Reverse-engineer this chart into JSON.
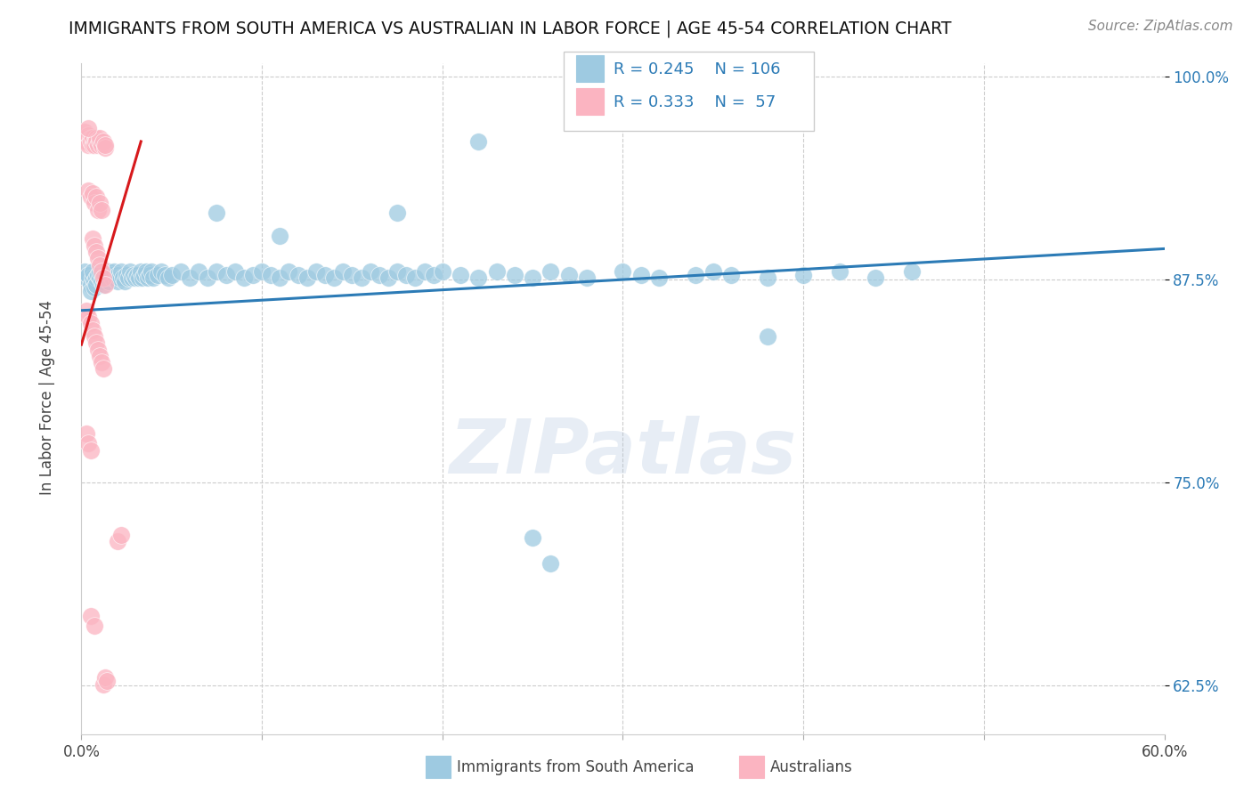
{
  "title": "IMMIGRANTS FROM SOUTH AMERICA VS AUSTRALIAN IN LABOR FORCE | AGE 45-54 CORRELATION CHART",
  "source": "Source: ZipAtlas.com",
  "ylabel": "In Labor Force | Age 45-54",
  "legend_label1": "Immigrants from South America",
  "legend_label2": "Australians",
  "R1": 0.245,
  "N1": 106,
  "R2": 0.333,
  "N2": 57,
  "xlim": [
    0.0,
    0.6
  ],
  "ylim": [
    0.595,
    1.008
  ],
  "blue_color": "#9ecae1",
  "pink_color": "#fbb4c1",
  "blue_line_color": "#2c7bb6",
  "pink_line_color": "#d7191c",
  "grid_color": "#cccccc",
  "background_color": "#ffffff",
  "watermark": "ZIPatlas",
  "blue_line_x0": 0.0,
  "blue_line_y0": 0.856,
  "blue_line_x1": 0.6,
  "blue_line_y1": 0.894,
  "pink_line_x0": 0.0,
  "pink_line_y0": 0.835,
  "pink_line_x1": 0.033,
  "pink_line_y1": 0.96,
  "blue_dots": [
    [
      0.002,
      0.88
    ],
    [
      0.003,
      0.876
    ],
    [
      0.004,
      0.878
    ],
    [
      0.005,
      0.872
    ],
    [
      0.005,
      0.868
    ],
    [
      0.006,
      0.876
    ],
    [
      0.006,
      0.88
    ],
    [
      0.007,
      0.874
    ],
    [
      0.007,
      0.87
    ],
    [
      0.008,
      0.876
    ],
    [
      0.008,
      0.872
    ],
    [
      0.009,
      0.878
    ],
    [
      0.01,
      0.876
    ],
    [
      0.01,
      0.88
    ],
    [
      0.011,
      0.874
    ],
    [
      0.012,
      0.872
    ],
    [
      0.013,
      0.878
    ],
    [
      0.014,
      0.876
    ],
    [
      0.015,
      0.88
    ],
    [
      0.015,
      0.874
    ],
    [
      0.016,
      0.878
    ],
    [
      0.017,
      0.876
    ],
    [
      0.018,
      0.88
    ],
    [
      0.019,
      0.876
    ],
    [
      0.02,
      0.878
    ],
    [
      0.02,
      0.874
    ],
    [
      0.021,
      0.876
    ],
    [
      0.022,
      0.88
    ],
    [
      0.023,
      0.876
    ],
    [
      0.024,
      0.874
    ],
    [
      0.025,
      0.878
    ],
    [
      0.026,
      0.876
    ],
    [
      0.027,
      0.88
    ],
    [
      0.028,
      0.876
    ],
    [
      0.029,
      0.878
    ],
    [
      0.03,
      0.876
    ],
    [
      0.031,
      0.878
    ],
    [
      0.032,
      0.876
    ],
    [
      0.033,
      0.88
    ],
    [
      0.034,
      0.876
    ],
    [
      0.035,
      0.878
    ],
    [
      0.036,
      0.88
    ],
    [
      0.037,
      0.876
    ],
    [
      0.038,
      0.878
    ],
    [
      0.039,
      0.88
    ],
    [
      0.04,
      0.876
    ],
    [
      0.042,
      0.878
    ],
    [
      0.044,
      0.88
    ],
    [
      0.046,
      0.878
    ],
    [
      0.048,
      0.876
    ],
    [
      0.05,
      0.878
    ],
    [
      0.055,
      0.88
    ],
    [
      0.06,
      0.876
    ],
    [
      0.065,
      0.88
    ],
    [
      0.07,
      0.876
    ],
    [
      0.075,
      0.88
    ],
    [
      0.08,
      0.878
    ],
    [
      0.085,
      0.88
    ],
    [
      0.09,
      0.876
    ],
    [
      0.095,
      0.878
    ],
    [
      0.1,
      0.88
    ],
    [
      0.105,
      0.878
    ],
    [
      0.11,
      0.876
    ],
    [
      0.115,
      0.88
    ],
    [
      0.12,
      0.878
    ],
    [
      0.125,
      0.876
    ],
    [
      0.13,
      0.88
    ],
    [
      0.135,
      0.878
    ],
    [
      0.14,
      0.876
    ],
    [
      0.145,
      0.88
    ],
    [
      0.15,
      0.878
    ],
    [
      0.155,
      0.876
    ],
    [
      0.16,
      0.88
    ],
    [
      0.165,
      0.878
    ],
    [
      0.17,
      0.876
    ],
    [
      0.175,
      0.88
    ],
    [
      0.18,
      0.878
    ],
    [
      0.185,
      0.876
    ],
    [
      0.19,
      0.88
    ],
    [
      0.195,
      0.878
    ],
    [
      0.2,
      0.88
    ],
    [
      0.21,
      0.878
    ],
    [
      0.22,
      0.876
    ],
    [
      0.23,
      0.88
    ],
    [
      0.24,
      0.878
    ],
    [
      0.25,
      0.876
    ],
    [
      0.26,
      0.88
    ],
    [
      0.27,
      0.878
    ],
    [
      0.28,
      0.876
    ],
    [
      0.3,
      0.88
    ],
    [
      0.31,
      0.878
    ],
    [
      0.32,
      0.876
    ],
    [
      0.34,
      0.878
    ],
    [
      0.35,
      0.88
    ],
    [
      0.36,
      0.878
    ],
    [
      0.38,
      0.876
    ],
    [
      0.4,
      0.878
    ],
    [
      0.42,
      0.88
    ],
    [
      0.44,
      0.876
    ],
    [
      0.46,
      0.88
    ],
    [
      0.075,
      0.916
    ],
    [
      0.11,
      0.902
    ],
    [
      0.175,
      0.916
    ],
    [
      0.22,
      0.96
    ],
    [
      0.25,
      0.716
    ],
    [
      0.26,
      0.7
    ],
    [
      0.38,
      0.84
    ]
  ],
  "pink_dots": [
    [
      0.002,
      0.966
    ],
    [
      0.003,
      0.962
    ],
    [
      0.003,
      0.96
    ],
    [
      0.004,
      0.964
    ],
    [
      0.004,
      0.958
    ],
    [
      0.005,
      0.962
    ],
    [
      0.005,
      0.96
    ],
    [
      0.006,
      0.958
    ],
    [
      0.006,
      0.962
    ],
    [
      0.007,
      0.96
    ],
    [
      0.007,
      0.958
    ],
    [
      0.008,
      0.962
    ],
    [
      0.008,
      0.96
    ],
    [
      0.009,
      0.958
    ],
    [
      0.01,
      0.96
    ],
    [
      0.01,
      0.962
    ],
    [
      0.011,
      0.958
    ],
    [
      0.012,
      0.96
    ],
    [
      0.013,
      0.956
    ],
    [
      0.013,
      0.958
    ],
    [
      0.004,
      0.93
    ],
    [
      0.005,
      0.926
    ],
    [
      0.006,
      0.928
    ],
    [
      0.007,
      0.922
    ],
    [
      0.008,
      0.926
    ],
    [
      0.009,
      0.918
    ],
    [
      0.01,
      0.922
    ],
    [
      0.011,
      0.918
    ],
    [
      0.006,
      0.9
    ],
    [
      0.007,
      0.896
    ],
    [
      0.008,
      0.892
    ],
    [
      0.009,
      0.888
    ],
    [
      0.01,
      0.884
    ],
    [
      0.011,
      0.88
    ],
    [
      0.012,
      0.876
    ],
    [
      0.013,
      0.872
    ],
    [
      0.003,
      0.856
    ],
    [
      0.004,
      0.852
    ],
    [
      0.005,
      0.848
    ],
    [
      0.006,
      0.844
    ],
    [
      0.007,
      0.84
    ],
    [
      0.008,
      0.836
    ],
    [
      0.009,
      0.832
    ],
    [
      0.01,
      0.828
    ],
    [
      0.011,
      0.824
    ],
    [
      0.012,
      0.82
    ],
    [
      0.003,
      0.78
    ],
    [
      0.004,
      0.774
    ],
    [
      0.005,
      0.77
    ],
    [
      0.02,
      0.714
    ],
    [
      0.022,
      0.718
    ],
    [
      0.005,
      0.668
    ],
    [
      0.007,
      0.662
    ],
    [
      0.012,
      0.626
    ],
    [
      0.013,
      0.63
    ],
    [
      0.014,
      0.628
    ],
    [
      0.004,
      0.968
    ]
  ]
}
